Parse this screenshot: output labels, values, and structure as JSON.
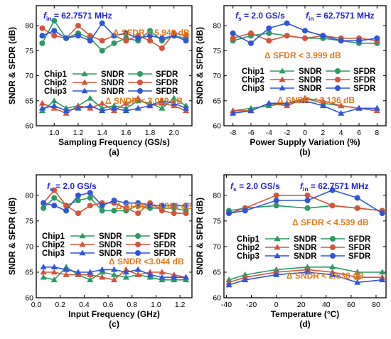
{
  "colors": {
    "chip1": "#2a9a63",
    "chip2": "#d2553a",
    "chip3": "#2f55d8",
    "annotation_blue": "#1f1fe0",
    "annotation_orange": "#e07a1a"
  },
  "legend": {
    "rows": [
      {
        "chip": "Chip1",
        "sndr": "SNDR",
        "sfdr": "SFDR"
      },
      {
        "chip": "Chip2",
        "sndr": "SNDR",
        "sfdr": "SFDR"
      },
      {
        "chip": "Chip3",
        "sndr": "SNDR",
        "sfdr": "SFDR"
      }
    ]
  },
  "chart_data": [
    {
      "type": "line",
      "sublabel": "(a)",
      "xlabel": "Sampling Frequency (GS/s)",
      "ylabel": "SNDR & SFDR (dB)",
      "xlim": [
        0.85,
        2.15
      ],
      "ylim": [
        60,
        84
      ],
      "xticks": [
        1.0,
        1.2,
        1.4,
        1.6,
        1.8,
        2.0
      ],
      "yticks": [
        60,
        65,
        70,
        75,
        80
      ],
      "annotations": [
        {
          "text": "f_in = 62.7571 MHz",
          "color": "blue"
        },
        {
          "text": "Δ SFDR < 5.940 dB",
          "color": "orange"
        },
        {
          "text": "Δ SNDR < 3.059 dB",
          "color": "orange"
        }
      ],
      "x": [
        0.9,
        1.0,
        1.1,
        1.2,
        1.3,
        1.4,
        1.5,
        1.6,
        1.7,
        1.8,
        1.9,
        2.0,
        2.1
      ],
      "series": [
        {
          "name": "Chip1 SFDR",
          "values": [
            76.5,
            81.0,
            77.5,
            78.5,
            77.5,
            75.0,
            76.5,
            77.5,
            77.0,
            79.0,
            77.0,
            78.0,
            77.5
          ]
        },
        {
          "name": "Chip2 SFDR",
          "values": [
            79.5,
            78.0,
            77.5,
            80.0,
            78.0,
            77.0,
            78.0,
            77.0,
            78.0,
            77.0,
            75.5,
            78.5,
            78.0
          ]
        },
        {
          "name": "Chip3 SFDR",
          "values": [
            78.0,
            79.0,
            77.5,
            78.0,
            77.0,
            80.5,
            78.0,
            78.5,
            77.5,
            78.0,
            77.5,
            78.0,
            77.0
          ]
        },
        {
          "name": "Chip1 SNDR",
          "values": [
            63.0,
            65.0,
            63.5,
            64.0,
            65.5,
            63.5,
            64.0,
            63.5,
            65.0,
            64.5,
            63.5,
            65.5,
            64.0
          ]
        },
        {
          "name": "Chip2 SNDR",
          "values": [
            64.5,
            63.5,
            62.5,
            64.0,
            63.5,
            64.5,
            63.0,
            64.5,
            65.5,
            64.0,
            64.5,
            64.0,
            63.0
          ]
        },
        {
          "name": "Chip3 SNDR",
          "values": [
            63.5,
            64.0,
            63.0,
            63.5,
            64.0,
            63.0,
            63.5,
            63.0,
            63.5,
            64.0,
            65.0,
            64.5,
            63.5
          ]
        }
      ]
    },
    {
      "type": "line",
      "sublabel": "(b)",
      "xlabel": "Power Supply Variation (%)",
      "ylabel": "SNDR & SFDR (dB)",
      "xlim": [
        -9,
        9
      ],
      "ylim": [
        60,
        84
      ],
      "xticks": [
        -8,
        -6,
        -4,
        -2,
        0,
        2,
        4,
        6,
        8
      ],
      "yticks": [
        60,
        65,
        70,
        75,
        80
      ],
      "annotations": [
        {
          "text": "f_s = 2.0 GS/s",
          "color": "blue"
        },
        {
          "text": "f_in = 62.7571 MHz",
          "color": "blue"
        },
        {
          "text": "Δ SFDR < 3.999 dB",
          "color": "orange"
        },
        {
          "text": "Δ SNDR < 3.136 dB",
          "color": "orange"
        }
      ],
      "x": [
        -8,
        -6,
        -4,
        -2,
        0,
        2,
        4,
        6,
        8
      ],
      "series": [
        {
          "name": "Chip1 SFDR",
          "values": [
            77.0,
            78.0,
            78.5,
            78.0,
            77.5,
            77.5,
            77.0,
            76.5,
            76.5
          ]
        },
        {
          "name": "Chip2 SFDR",
          "values": [
            77.5,
            78.5,
            77.0,
            78.0,
            77.5,
            78.0,
            77.5,
            77.5,
            77.0
          ]
        },
        {
          "name": "Chip3 SFDR",
          "values": [
            78.5,
            76.5,
            79.5,
            80.5,
            79.0,
            78.0,
            77.0,
            77.0,
            77.5
          ]
        },
        {
          "name": "Chip1 SNDR",
          "values": [
            63.0,
            63.5,
            64.0,
            64.5,
            65.5,
            64.5,
            64.0,
            63.5,
            63.5
          ]
        },
        {
          "name": "Chip2 SNDR",
          "values": [
            63.0,
            63.0,
            64.5,
            64.0,
            65.5,
            65.0,
            64.0,
            63.5,
            63.0
          ]
        },
        {
          "name": "Chip3 SNDR",
          "values": [
            62.5,
            63.0,
            64.5,
            64.5,
            65.0,
            64.0,
            62.5,
            63.5,
            63.5
          ]
        }
      ]
    },
    {
      "type": "line",
      "sublabel": "(c)",
      "xlabel": "Input Frequency (GHz)",
      "ylabel": "SNDR & SFDR (dB)",
      "xlim": [
        0,
        1.3
      ],
      "ylim": [
        60,
        84
      ],
      "xticks": [
        0.0,
        0.2,
        0.4,
        0.6,
        0.8,
        1.0,
        1.2
      ],
      "yticks": [
        60,
        65,
        70,
        75,
        80
      ],
      "annotations": [
        {
          "text": "f_s = 2.0 GS/s",
          "color": "blue"
        },
        {
          "text": "Δ SFDR < 4.860 dB",
          "color": "orange"
        },
        {
          "text": "Δ SNDR <3.044 dB",
          "color": "orange"
        }
      ],
      "x": [
        0.06,
        0.15,
        0.25,
        0.35,
        0.45,
        0.55,
        0.65,
        0.75,
        0.85,
        0.95,
        1.05,
        1.15,
        1.25
      ],
      "series": [
        {
          "name": "Chip1 SFDR",
          "values": [
            77.5,
            79.5,
            78.0,
            79.0,
            79.5,
            77.0,
            77.0,
            77.0,
            78.0,
            77.5,
            77.5,
            77.5,
            77.0
          ]
        },
        {
          "name": "Chip2 SFDR",
          "values": [
            78.5,
            81.0,
            78.0,
            76.5,
            78.0,
            78.5,
            78.5,
            77.5,
            76.5,
            78.5,
            77.0,
            76.5,
            76.5
          ]
        },
        {
          "name": "Chip3 SFDR",
          "values": [
            78.5,
            78.0,
            77.0,
            80.0,
            80.5,
            78.0,
            79.0,
            78.5,
            78.5,
            78.0,
            78.0,
            78.0,
            78.0
          ]
        },
        {
          "name": "Chip1 SNDR",
          "values": [
            64.0,
            63.5,
            66.0,
            64.5,
            63.5,
            65.0,
            64.5,
            64.0,
            64.5,
            64.0,
            63.5,
            63.5,
            63.5
          ]
        },
        {
          "name": "Chip2 SNDR",
          "values": [
            65.0,
            65.0,
            64.5,
            64.5,
            64.5,
            64.0,
            63.5,
            65.5,
            64.5,
            65.0,
            65.0,
            64.5,
            64.0
          ]
        },
        {
          "name": "Chip3 SNDR",
          "values": [
            66.0,
            66.0,
            65.5,
            65.0,
            65.0,
            65.5,
            65.5,
            65.0,
            65.5,
            64.5,
            64.0,
            64.0,
            64.0
          ]
        }
      ]
    },
    {
      "type": "line",
      "sublabel": "(d)",
      "xlabel": "Temperature (°C)",
      "ylabel": "SNDR & SFDR (dB)",
      "xlim": [
        -42,
        88
      ],
      "ylim": [
        60,
        84
      ],
      "xticks": [
        -40,
        -20,
        0,
        20,
        40,
        60,
        80
      ],
      "yticks": [
        60,
        65,
        70,
        75,
        80
      ],
      "annotations": [
        {
          "text": "f_s = 2.0 GS/s",
          "color": "blue"
        },
        {
          "text": "f_in = 62.7571 MHz",
          "color": "blue"
        },
        {
          "text": "Δ SFDR < 4.539 dB",
          "color": "orange"
        },
        {
          "text": "Δ SNDR < 2.838 dB",
          "color": "orange"
        }
      ],
      "x": [
        -38,
        -25,
        0,
        25,
        45,
        65,
        85
      ],
      "series": [
        {
          "name": "Chip1 SFDR",
          "values": [
            77.0,
            77.5,
            78.0,
            77.5,
            78.0,
            77.5,
            77.0
          ]
        },
        {
          "name": "Chip2 SFDR",
          "values": [
            76.5,
            77.5,
            80.0,
            80.0,
            78.0,
            77.5,
            77.0
          ]
        },
        {
          "name": "Chip3 SFDR",
          "values": [
            76.5,
            77.0,
            79.0,
            79.0,
            81.0,
            79.5,
            76.5
          ]
        },
        {
          "name": "Chip1 SNDR",
          "values": [
            63.5,
            64.5,
            65.5,
            66.0,
            66.0,
            65.0,
            65.0
          ]
        },
        {
          "name": "Chip2 SNDR",
          "values": [
            63.0,
            64.0,
            65.0,
            65.5,
            65.0,
            64.0,
            64.0
          ]
        },
        {
          "name": "Chip3 SNDR",
          "values": [
            62.5,
            63.5,
            64.5,
            65.0,
            64.5,
            63.0,
            63.5
          ]
        }
      ]
    }
  ]
}
